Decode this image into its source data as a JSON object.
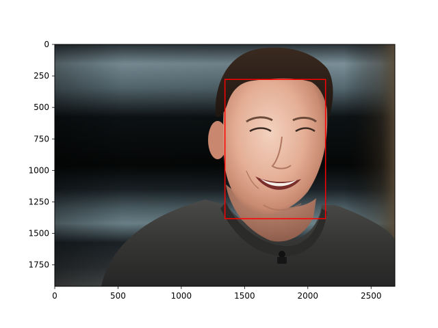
{
  "chart_data": {
    "type": "image",
    "title": "",
    "xlabel": "",
    "ylabel": "",
    "xlim": [
      0,
      2688
    ],
    "ylim": [
      1920,
      0
    ],
    "x_ticks": [
      0,
      500,
      1000,
      1500,
      2000,
      2500
    ],
    "y_ticks": [
      0,
      250,
      500,
      750,
      1000,
      1250,
      1500,
      1750
    ],
    "x_tick_labels": [
      "0",
      "500",
      "1000",
      "1500",
      "2000",
      "2500"
    ],
    "y_tick_labels": [
      "0",
      "250",
      "500",
      "750",
      "1000",
      "1250",
      "1500",
      "1750"
    ],
    "image_content": "photo-of-smiling-man-in-dark-sweater",
    "detection_box": {
      "label": "face",
      "x": 1345,
      "y": 278,
      "width": 795,
      "height": 1105,
      "color": "#ff0000"
    },
    "grid": false,
    "legend": "none"
  }
}
